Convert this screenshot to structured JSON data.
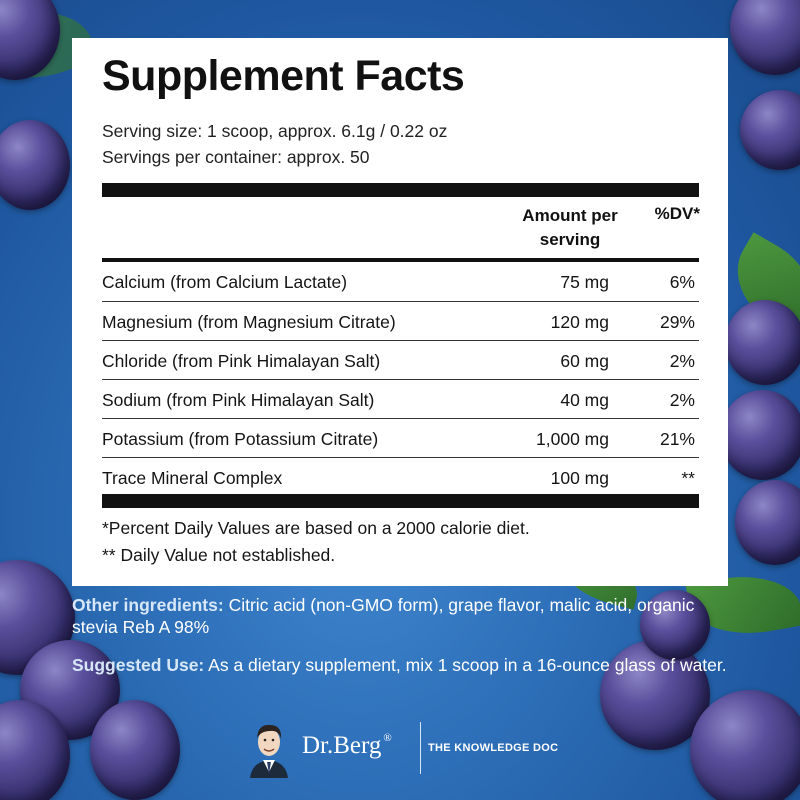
{
  "panel": {
    "title": "Supplement Facts",
    "serving_size": "Serving size: 1 scoop, approx. 6.1g / 0.22 oz",
    "servings_per_container": "Servings per container: approx. 50",
    "header_amount_line1": "Amount per",
    "header_amount_line2": "serving",
    "header_dv": "%DV*",
    "rows": [
      {
        "name": "Calcium (from Calcium Lactate)",
        "amount": "75 mg",
        "dv": "6%"
      },
      {
        "name": "Magnesium (from Magnesium Citrate)",
        "amount": "120 mg",
        "dv": "29%"
      },
      {
        "name": "Chloride (from Pink Himalayan Salt)",
        "amount": "60 mg",
        "dv": "2%"
      },
      {
        "name": "Sodium (from Pink Himalayan Salt)",
        "amount": "40 mg",
        "dv": "2%"
      },
      {
        "name": "Potassium (from Potassium Citrate)",
        "amount": "1,000 mg",
        "dv": "21%"
      },
      {
        "name": "Trace Mineral Complex",
        "amount": "100 mg",
        "dv": "**"
      }
    ],
    "footnote_1": "*Percent Daily Values are based on a 2000 calorie diet.",
    "footnote_2": "** Daily Value not established."
  },
  "other_ingredients": {
    "label": "Other ingredients:",
    "text": "Citric acid (non-GMO form), grape flavor, malic acid, organic stevia Reb A 98%"
  },
  "suggested_use": {
    "label": "Suggested Use:",
    "text": "As a dietary supplement, mix 1 scoop in a 16-ounce glass of water."
  },
  "logo": {
    "brand": "Dr.Berg",
    "registered": "®",
    "tagline": "THE KNOWLEDGE DOC"
  },
  "colors": {
    "background": "#2d6fb8",
    "panel": "#ffffff",
    "text_dark": "#111111",
    "grape": "#37306e"
  }
}
